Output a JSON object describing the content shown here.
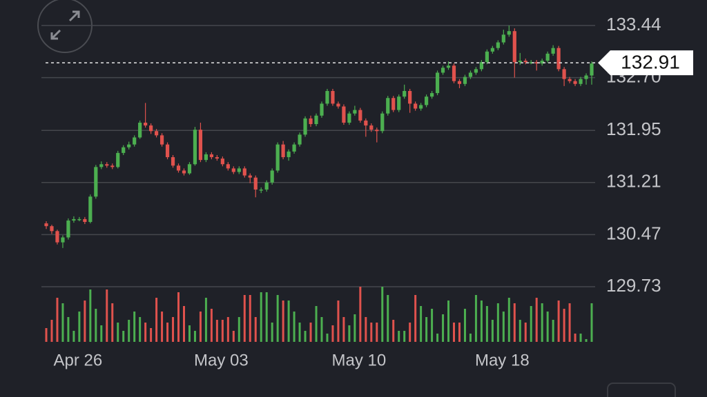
{
  "chart_data": {
    "type": "candlestick",
    "categories": [
      null,
      null,
      null,
      null,
      null,
      null,
      "Apr 26",
      null,
      null,
      null,
      null,
      null,
      null,
      null,
      null,
      null,
      null,
      null,
      null,
      null,
      null,
      null,
      null,
      null,
      null,
      null,
      null,
      null,
      null,
      null,
      null,
      null,
      "May 03",
      null,
      null,
      null,
      null,
      null,
      null,
      null,
      null,
      null,
      null,
      null,
      null,
      null,
      null,
      null,
      null,
      null,
      null,
      null,
      null,
      null,
      null,
      null,
      null,
      "May 10",
      null,
      null,
      null,
      null,
      null,
      null,
      null,
      null,
      null,
      null,
      null,
      null,
      null,
      null,
      null,
      null,
      null,
      null,
      null,
      null,
      null,
      null,
      null,
      null,
      null,
      "May 18",
      null,
      null,
      null,
      null,
      null,
      null,
      null,
      null,
      null,
      null,
      null,
      null,
      null,
      null,
      null,
      null
    ],
    "candles": [
      [
        130.63,
        130.66,
        130.55,
        130.59
      ],
      [
        130.59,
        130.61,
        130.48,
        130.52
      ],
      [
        130.52,
        130.54,
        130.33,
        130.36
      ],
      [
        130.36,
        130.46,
        130.28,
        130.43
      ],
      [
        130.43,
        130.7,
        130.4,
        130.67
      ],
      [
        130.67,
        130.73,
        130.64,
        130.69
      ],
      [
        130.69,
        130.72,
        130.66,
        130.69
      ],
      [
        130.69,
        130.72,
        130.62,
        130.65
      ],
      [
        130.65,
        131.04,
        130.63,
        131.01
      ],
      [
        131.01,
        131.46,
        130.98,
        131.43
      ],
      [
        131.43,
        131.51,
        131.4,
        131.47
      ],
      [
        131.47,
        131.5,
        131.42,
        131.45
      ],
      [
        131.45,
        131.48,
        131.4,
        131.43
      ],
      [
        131.43,
        131.66,
        131.41,
        131.63
      ],
      [
        131.63,
        131.74,
        131.6,
        131.71
      ],
      [
        131.71,
        131.79,
        131.68,
        131.75
      ],
      [
        131.75,
        131.88,
        131.72,
        131.85
      ],
      [
        131.85,
        132.09,
        131.83,
        132.06
      ],
      [
        132.06,
        132.34,
        131.99,
        132.02
      ],
      [
        132.02,
        132.05,
        131.9,
        131.94
      ],
      [
        131.94,
        131.97,
        131.85,
        131.88
      ],
      [
        131.88,
        131.91,
        131.72,
        131.75
      ],
      [
        131.75,
        131.78,
        131.54,
        131.57
      ],
      [
        131.57,
        131.6,
        131.42,
        131.45
      ],
      [
        131.45,
        131.48,
        131.35,
        131.38
      ],
      [
        131.38,
        131.41,
        131.31,
        131.34
      ],
      [
        131.34,
        131.5,
        131.32,
        131.47
      ],
      [
        131.47,
        132.0,
        131.45,
        131.96
      ],
      [
        131.96,
        132.06,
        131.5,
        131.53
      ],
      [
        131.53,
        131.64,
        131.5,
        131.61
      ],
      [
        131.61,
        131.64,
        131.54,
        131.57
      ],
      [
        131.57,
        131.6,
        131.52,
        131.55
      ],
      [
        131.55,
        131.58,
        131.44,
        131.47
      ],
      [
        131.47,
        131.5,
        131.38,
        131.41
      ],
      [
        131.41,
        131.44,
        131.33,
        131.36
      ],
      [
        131.36,
        131.44,
        131.33,
        131.41
      ],
      [
        131.41,
        131.44,
        131.28,
        131.31
      ],
      [
        131.31,
        131.34,
        131.2,
        131.28
      ],
      [
        131.28,
        131.31,
        131.0,
        131.11
      ],
      [
        131.11,
        131.14,
        131.06,
        131.11
      ],
      [
        131.11,
        131.24,
        131.08,
        131.21
      ],
      [
        131.21,
        131.41,
        131.18,
        131.38
      ],
      [
        131.38,
        131.78,
        131.35,
        131.75
      ],
      [
        131.75,
        131.8,
        131.54,
        131.57
      ],
      [
        131.57,
        131.68,
        131.52,
        131.65
      ],
      [
        131.65,
        131.78,
        131.62,
        131.75
      ],
      [
        131.75,
        131.92,
        131.72,
        131.89
      ],
      [
        131.89,
        132.15,
        131.86,
        132.12
      ],
      [
        132.12,
        132.16,
        132.0,
        132.04
      ],
      [
        132.04,
        132.19,
        132.01,
        132.16
      ],
      [
        132.16,
        132.36,
        132.13,
        132.33
      ],
      [
        132.33,
        132.54,
        132.3,
        132.51
      ],
      [
        132.51,
        132.54,
        132.3,
        132.33
      ],
      [
        132.33,
        132.36,
        132.26,
        132.29
      ],
      [
        132.29,
        132.32,
        132.03,
        132.06
      ],
      [
        132.06,
        132.22,
        132.03,
        132.19
      ],
      [
        132.19,
        132.3,
        132.16,
        132.24
      ],
      [
        132.24,
        132.27,
        132.06,
        132.09
      ],
      [
        132.09,
        132.12,
        131.86,
        132.02
      ],
      [
        132.02,
        132.05,
        131.93,
        131.96
      ],
      [
        131.96,
        131.99,
        131.78,
        131.94
      ],
      [
        131.94,
        132.22,
        131.91,
        132.19
      ],
      [
        132.19,
        132.44,
        132.16,
        132.41
      ],
      [
        132.41,
        132.44,
        132.21,
        132.24
      ],
      [
        132.24,
        132.46,
        132.21,
        132.43
      ],
      [
        132.43,
        132.6,
        132.4,
        132.51
      ],
      [
        132.51,
        132.54,
        132.2,
        132.33
      ],
      [
        132.33,
        132.36,
        132.23,
        132.26
      ],
      [
        132.26,
        132.34,
        132.23,
        132.31
      ],
      [
        132.31,
        132.46,
        132.28,
        132.43
      ],
      [
        132.43,
        132.51,
        132.4,
        132.48
      ],
      [
        132.48,
        132.8,
        132.45,
        132.77
      ],
      [
        132.77,
        132.87,
        132.74,
        132.84
      ],
      [
        132.84,
        132.93,
        132.81,
        132.87
      ],
      [
        132.87,
        132.9,
        132.62,
        132.65
      ],
      [
        132.65,
        132.68,
        132.55,
        132.61
      ],
      [
        132.61,
        132.74,
        132.58,
        132.71
      ],
      [
        132.71,
        132.8,
        132.68,
        132.77
      ],
      [
        132.77,
        132.85,
        132.74,
        132.82
      ],
      [
        132.82,
        132.95,
        132.79,
        132.92
      ],
      [
        132.92,
        133.1,
        132.89,
        133.07
      ],
      [
        133.07,
        133.15,
        133.04,
        133.12
      ],
      [
        133.12,
        133.23,
        133.09,
        133.2
      ],
      [
        133.2,
        133.38,
        133.17,
        133.31
      ],
      [
        133.31,
        133.44,
        133.28,
        133.36
      ],
      [
        133.36,
        133.4,
        132.7,
        132.92
      ],
      [
        132.92,
        133.05,
        132.88,
        132.94
      ],
      [
        132.94,
        132.97,
        132.89,
        132.92
      ],
      [
        132.92,
        132.95,
        132.89,
        132.92
      ],
      [
        132.92,
        132.95,
        132.8,
        132.9
      ],
      [
        132.9,
        132.97,
        132.87,
        132.94
      ],
      [
        132.94,
        133.07,
        132.91,
        133.04
      ],
      [
        133.04,
        133.16,
        133.01,
        133.12
      ],
      [
        133.12,
        133.15,
        132.79,
        132.82
      ],
      [
        132.82,
        132.85,
        132.58,
        132.68
      ],
      [
        132.68,
        132.71,
        132.62,
        132.65
      ],
      [
        132.65,
        132.68,
        132.58,
        132.61
      ],
      [
        132.61,
        132.71,
        132.58,
        132.68
      ],
      [
        132.68,
        132.76,
        132.6,
        132.73
      ],
      [
        132.73,
        132.93,
        132.6,
        132.9
      ]
    ],
    "volume": [
      25,
      40,
      80,
      70,
      45,
      20,
      55,
      75,
      95,
      60,
      30,
      95,
      70,
      35,
      20,
      40,
      55,
      45,
      35,
      25,
      80,
      55,
      35,
      45,
      90,
      65,
      30,
      20,
      55,
      80,
      60,
      40,
      40,
      45,
      20,
      45,
      85,
      85,
      45,
      90,
      90,
      35,
      85,
      75,
      75,
      55,
      35,
      20,
      35,
      65,
      45,
      15,
      30,
      75,
      45,
      30,
      50,
      100,
      45,
      35,
      35,
      100,
      85,
      40,
      20,
      20,
      35,
      85,
      65,
      45,
      60,
      15,
      50,
      75,
      35,
      35,
      60,
      15,
      85,
      75,
      65,
      40,
      70,
      55,
      80,
      70,
      40,
      35,
      65,
      80,
      70,
      55,
      40,
      75,
      60,
      70,
      15,
      15,
      5,
      70
    ],
    "volume_ylim": [
      0,
      100
    ],
    "ylim": [
      129.73,
      133.44
    ],
    "yticks": [
      133.44,
      {
        "value": 132.7,
        "label": "132.70"
      },
      131.95,
      131.21,
      130.47,
      129.73
    ],
    "last_price": 132.91,
    "up_color": "#4caf50",
    "down_color": "#e0524d",
    "grid": true
  }
}
